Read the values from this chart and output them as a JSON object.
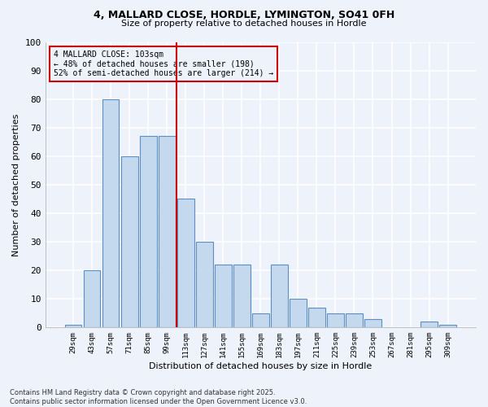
{
  "title1": "4, MALLARD CLOSE, HORDLE, LYMINGTON, SO41 0FH",
  "title2": "Size of property relative to detached houses in Hordle",
  "xlabel": "Distribution of detached houses by size in Hordle",
  "ylabel": "Number of detached properties",
  "categories": [
    "29sqm",
    "43sqm",
    "57sqm",
    "71sqm",
    "85sqm",
    "99sqm",
    "113sqm",
    "127sqm",
    "141sqm",
    "155sqm",
    "169sqm",
    "183sqm",
    "197sqm",
    "211sqm",
    "225sqm",
    "239sqm",
    "253sqm",
    "267sqm",
    "281sqm",
    "295sqm",
    "309sqm"
  ],
  "values": [
    1,
    20,
    80,
    60,
    67,
    67,
    45,
    30,
    22,
    22,
    5,
    22,
    10,
    7,
    5,
    5,
    3,
    0,
    0,
    2,
    1
  ],
  "bar_color": "#c5d9ee",
  "bar_edge_color": "#5b8ec4",
  "ref_line_color": "#cc0000",
  "annotation_text": "4 MALLARD CLOSE: 103sqm\n← 48% of detached houses are smaller (198)\n52% of semi-detached houses are larger (214) →",
  "annotation_box_color": "#cc0000",
  "ylim": [
    0,
    100
  ],
  "yticks": [
    0,
    10,
    20,
    30,
    40,
    50,
    60,
    70,
    80,
    90,
    100
  ],
  "background_color": "#eef2fb",
  "grid_color": "#ffffff",
  "footer": "Contains HM Land Registry data © Crown copyright and database right 2025.\nContains public sector information licensed under the Open Government Licence v3.0."
}
